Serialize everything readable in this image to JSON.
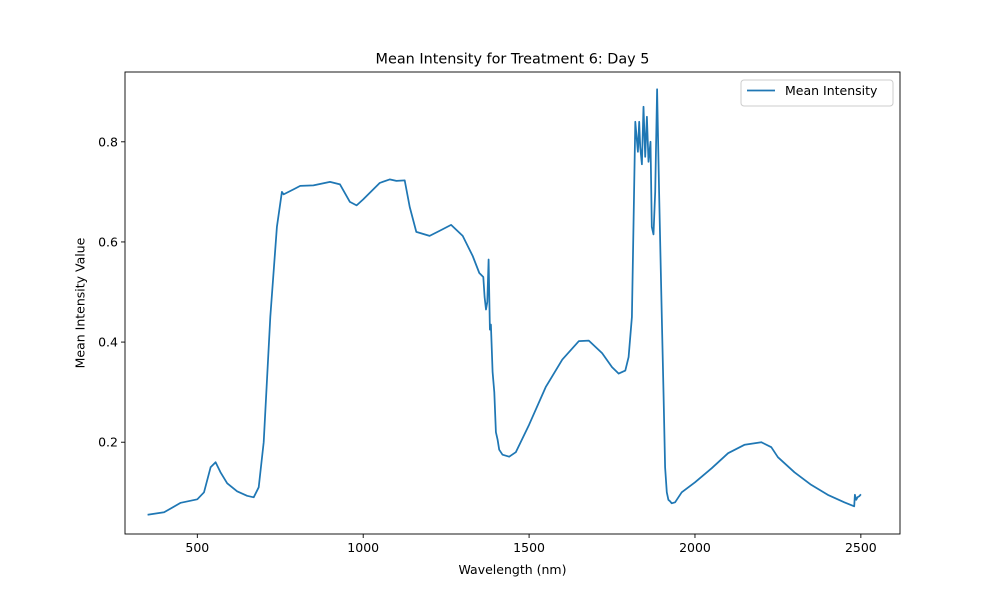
{
  "chart_data": {
    "type": "line",
    "title": "Mean Intensity for Treatment 6: Day 5",
    "xlabel": "Wavelength (nm)",
    "ylabel": "Mean Intensity Value",
    "xlim": [
      282,
      2618
    ],
    "ylim": [
      0.0167,
      0.9394
    ],
    "xticks": [
      500,
      1000,
      1500,
      2000,
      2500
    ],
    "yticks": [
      0.2,
      0.4,
      0.6,
      0.8
    ],
    "xtick_labels": [
      "500",
      "1000",
      "1500",
      "2000",
      "2500"
    ],
    "ytick_labels": [
      "0.2",
      "0.4",
      "0.6",
      "0.8"
    ],
    "grid": false,
    "legend_position": "top-right",
    "series": [
      {
        "name": "Mean Intensity",
        "color": "#1f77b4",
        "x": [
          350,
          400,
          450,
          500,
          520,
          540,
          555,
          570,
          590,
          620,
          650,
          670,
          685,
          700,
          720,
          740,
          755,
          760,
          790,
          810,
          850,
          900,
          930,
          960,
          980,
          1000,
          1050,
          1080,
          1100,
          1125,
          1140,
          1160,
          1200,
          1230,
          1265,
          1300,
          1330,
          1350,
          1362,
          1366,
          1370,
          1374,
          1378,
          1382,
          1385,
          1390,
          1395,
          1400,
          1405,
          1410,
          1420,
          1440,
          1460,
          1500,
          1550,
          1600,
          1650,
          1680,
          1720,
          1750,
          1770,
          1790,
          1800,
          1810,
          1820,
          1828,
          1832,
          1835,
          1840,
          1845,
          1850,
          1855,
          1860,
          1866,
          1870,
          1875,
          1880,
          1886,
          1892,
          1900,
          1905,
          1910,
          1915,
          1920,
          1925,
          1930,
          1940,
          1960,
          2000,
          2050,
          2100,
          2150,
          2200,
          2230,
          2250,
          2300,
          2350,
          2400,
          2450,
          2480,
          2482,
          2486,
          2490,
          2495,
          2500
        ],
        "values": [
          0.055,
          0.06,
          0.079,
          0.086,
          0.1,
          0.15,
          0.16,
          0.14,
          0.118,
          0.102,
          0.093,
          0.09,
          0.11,
          0.2,
          0.45,
          0.63,
          0.7,
          0.695,
          0.705,
          0.712,
          0.713,
          0.72,
          0.715,
          0.68,
          0.673,
          0.685,
          0.718,
          0.725,
          0.722,
          0.723,
          0.67,
          0.62,
          0.612,
          0.622,
          0.634,
          0.612,
          0.572,
          0.538,
          0.53,
          0.49,
          0.465,
          0.48,
          0.565,
          0.425,
          0.435,
          0.34,
          0.3,
          0.22,
          0.205,
          0.185,
          0.175,
          0.171,
          0.18,
          0.235,
          0.31,
          0.365,
          0.402,
          0.403,
          0.378,
          0.35,
          0.337,
          0.343,
          0.37,
          0.45,
          0.84,
          0.78,
          0.84,
          0.79,
          0.755,
          0.87,
          0.77,
          0.85,
          0.76,
          0.8,
          0.63,
          0.615,
          0.7,
          0.905,
          0.7,
          0.45,
          0.3,
          0.15,
          0.1,
          0.085,
          0.082,
          0.078,
          0.08,
          0.1,
          0.12,
          0.148,
          0.178,
          0.195,
          0.2,
          0.19,
          0.17,
          0.14,
          0.115,
          0.095,
          0.08,
          0.072,
          0.095,
          0.085,
          0.09,
          0.092,
          0.096
        ]
      }
    ]
  }
}
